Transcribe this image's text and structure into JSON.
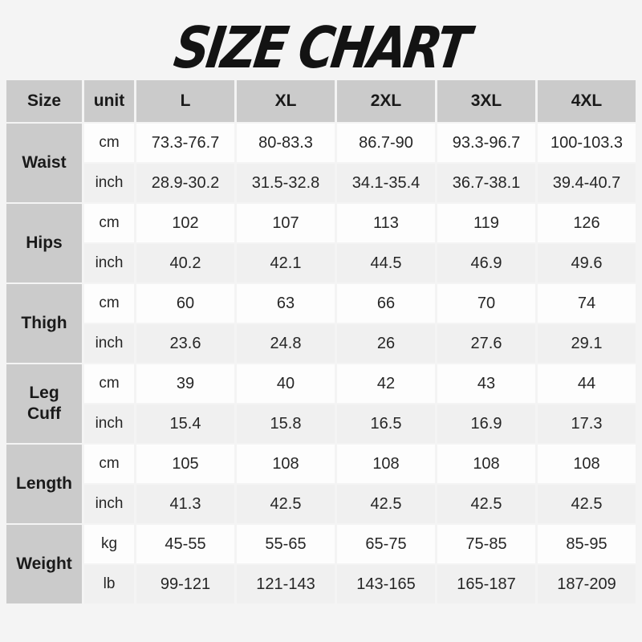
{
  "title": "SIZE CHART",
  "chart_data": {
    "type": "table",
    "title": "SIZE CHART",
    "columns": [
      "Size",
      "unit",
      "L",
      "XL",
      "2XL",
      "3XL",
      "4XL"
    ],
    "measurements": [
      {
        "label": "Waist",
        "rows": [
          {
            "unit": "cm",
            "values": [
              "73.3-76.7",
              "80-83.3",
              "86.7-90",
              "93.3-96.7",
              "100-103.3"
            ]
          },
          {
            "unit": "inch",
            "values": [
              "28.9-30.2",
              "31.5-32.8",
              "34.1-35.4",
              "36.7-38.1",
              "39.4-40.7"
            ]
          }
        ]
      },
      {
        "label": "Hips",
        "rows": [
          {
            "unit": "cm",
            "values": [
              "102",
              "107",
              "113",
              "119",
              "126"
            ]
          },
          {
            "unit": "inch",
            "values": [
              "40.2",
              "42.1",
              "44.5",
              "46.9",
              "49.6"
            ]
          }
        ]
      },
      {
        "label": "Thigh",
        "rows": [
          {
            "unit": "cm",
            "values": [
              "60",
              "63",
              "66",
              "70",
              "74"
            ]
          },
          {
            "unit": "inch",
            "values": [
              "23.6",
              "24.8",
              "26",
              "27.6",
              "29.1"
            ]
          }
        ]
      },
      {
        "label": "Leg Cuff",
        "rows": [
          {
            "unit": "cm",
            "values": [
              "39",
              "40",
              "42",
              "43",
              "44"
            ]
          },
          {
            "unit": "inch",
            "values": [
              "15.4",
              "15.8",
              "16.5",
              "16.9",
              "17.3"
            ]
          }
        ]
      },
      {
        "label": "Length",
        "rows": [
          {
            "unit": "cm",
            "values": [
              "105",
              "108",
              "108",
              "108",
              "108"
            ]
          },
          {
            "unit": "inch",
            "values": [
              "41.3",
              "42.5",
              "42.5",
              "42.5",
              "42.5"
            ]
          }
        ]
      },
      {
        "label": "Weight",
        "rows": [
          {
            "unit": "kg",
            "values": [
              "45-55",
              "55-65",
              "65-75",
              "75-85",
              "85-95"
            ]
          },
          {
            "unit": "lb",
            "values": [
              "99-121",
              "121-143",
              "143-165",
              "165-187",
              "187-209"
            ]
          }
        ]
      }
    ]
  },
  "colors": {
    "page_bg": "#f4f4f4",
    "header_bg": "#cbcbcb",
    "row_light": "#fdfdfd",
    "row_shaded": "#f0f0f0",
    "title_color": "#131313",
    "text_color": "#262626"
  }
}
